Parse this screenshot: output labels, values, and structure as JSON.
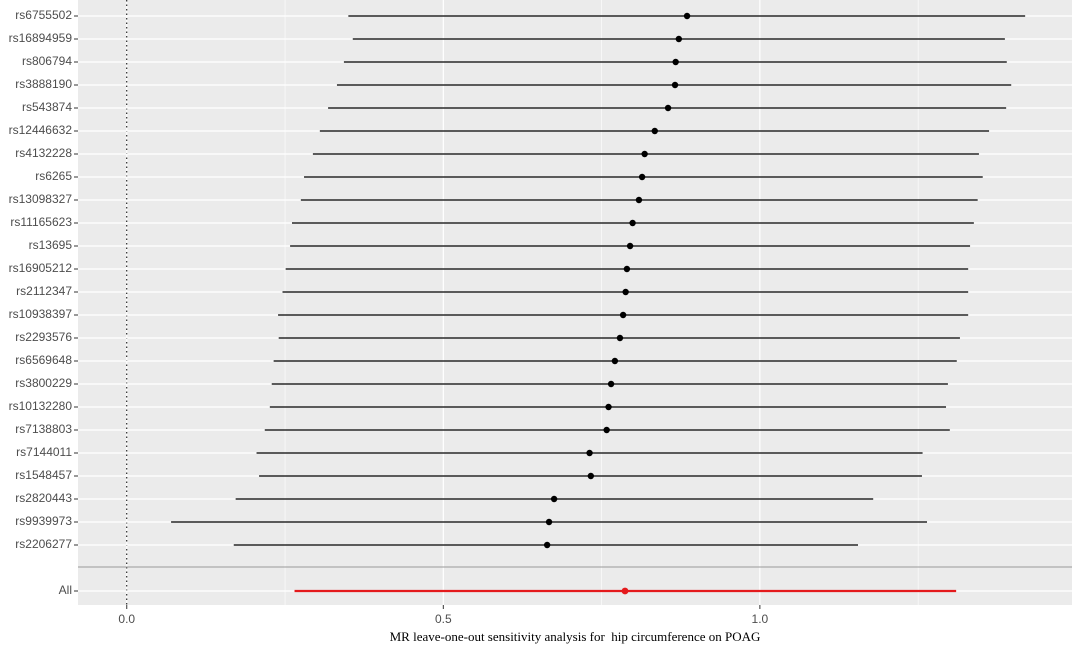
{
  "chart_data": {
    "type": "forest",
    "x_label": "MR leave-one-out sensitivity analysis for  hip circumference on POAG",
    "categories": [
      "rs6755502",
      "rs16894959",
      "rs806794",
      "rs3888190",
      "rs543874",
      "rs12446632",
      "rs4132228",
      "rs6265",
      "rs13098327",
      "rs11165623",
      "rs13695",
      "rs16905212",
      "rs2112347",
      "rs10938397",
      "rs2293576",
      "rs6569648",
      "rs3800229",
      "rs10132280",
      "rs7138803",
      "rs7144011",
      "rs1548457",
      "rs2820443",
      "rs9939973",
      "rs2206277"
    ],
    "values": [
      0.885,
      0.872,
      0.867,
      0.866,
      0.855,
      0.834,
      0.818,
      0.814,
      0.809,
      0.799,
      0.795,
      0.79,
      0.788,
      0.784,
      0.779,
      0.771,
      0.765,
      0.761,
      0.758,
      0.731,
      0.733,
      0.675,
      0.667,
      0.664
    ],
    "lower": [
      0.35,
      0.357,
      0.343,
      0.332,
      0.318,
      0.305,
      0.294,
      0.28,
      0.275,
      0.261,
      0.258,
      0.251,
      0.246,
      0.239,
      0.24,
      0.232,
      0.229,
      0.226,
      0.218,
      0.205,
      0.209,
      0.172,
      0.07,
      0.169
    ],
    "upper": [
      1.419,
      1.387,
      1.39,
      1.397,
      1.389,
      1.362,
      1.346,
      1.352,
      1.344,
      1.338,
      1.332,
      1.329,
      1.329,
      1.329,
      1.316,
      1.311,
      1.297,
      1.294,
      1.3,
      1.257,
      1.256,
      1.179,
      1.264,
      1.155
    ],
    "color": "#000000",
    "summary": {
      "label": "All",
      "value": 0.787,
      "lower": 0.265,
      "upper": 1.31,
      "color": "#e41a1c"
    },
    "xlim": [
      -0.077,
      1.493
    ],
    "xticks": [
      {
        "value": 0,
        "label": "0.0"
      },
      0.5,
      {
        "value": 1,
        "label": "1.0"
      }
    ],
    "minor_xticks": [
      0.25,
      0.75,
      1.25
    ],
    "grid": true
  }
}
